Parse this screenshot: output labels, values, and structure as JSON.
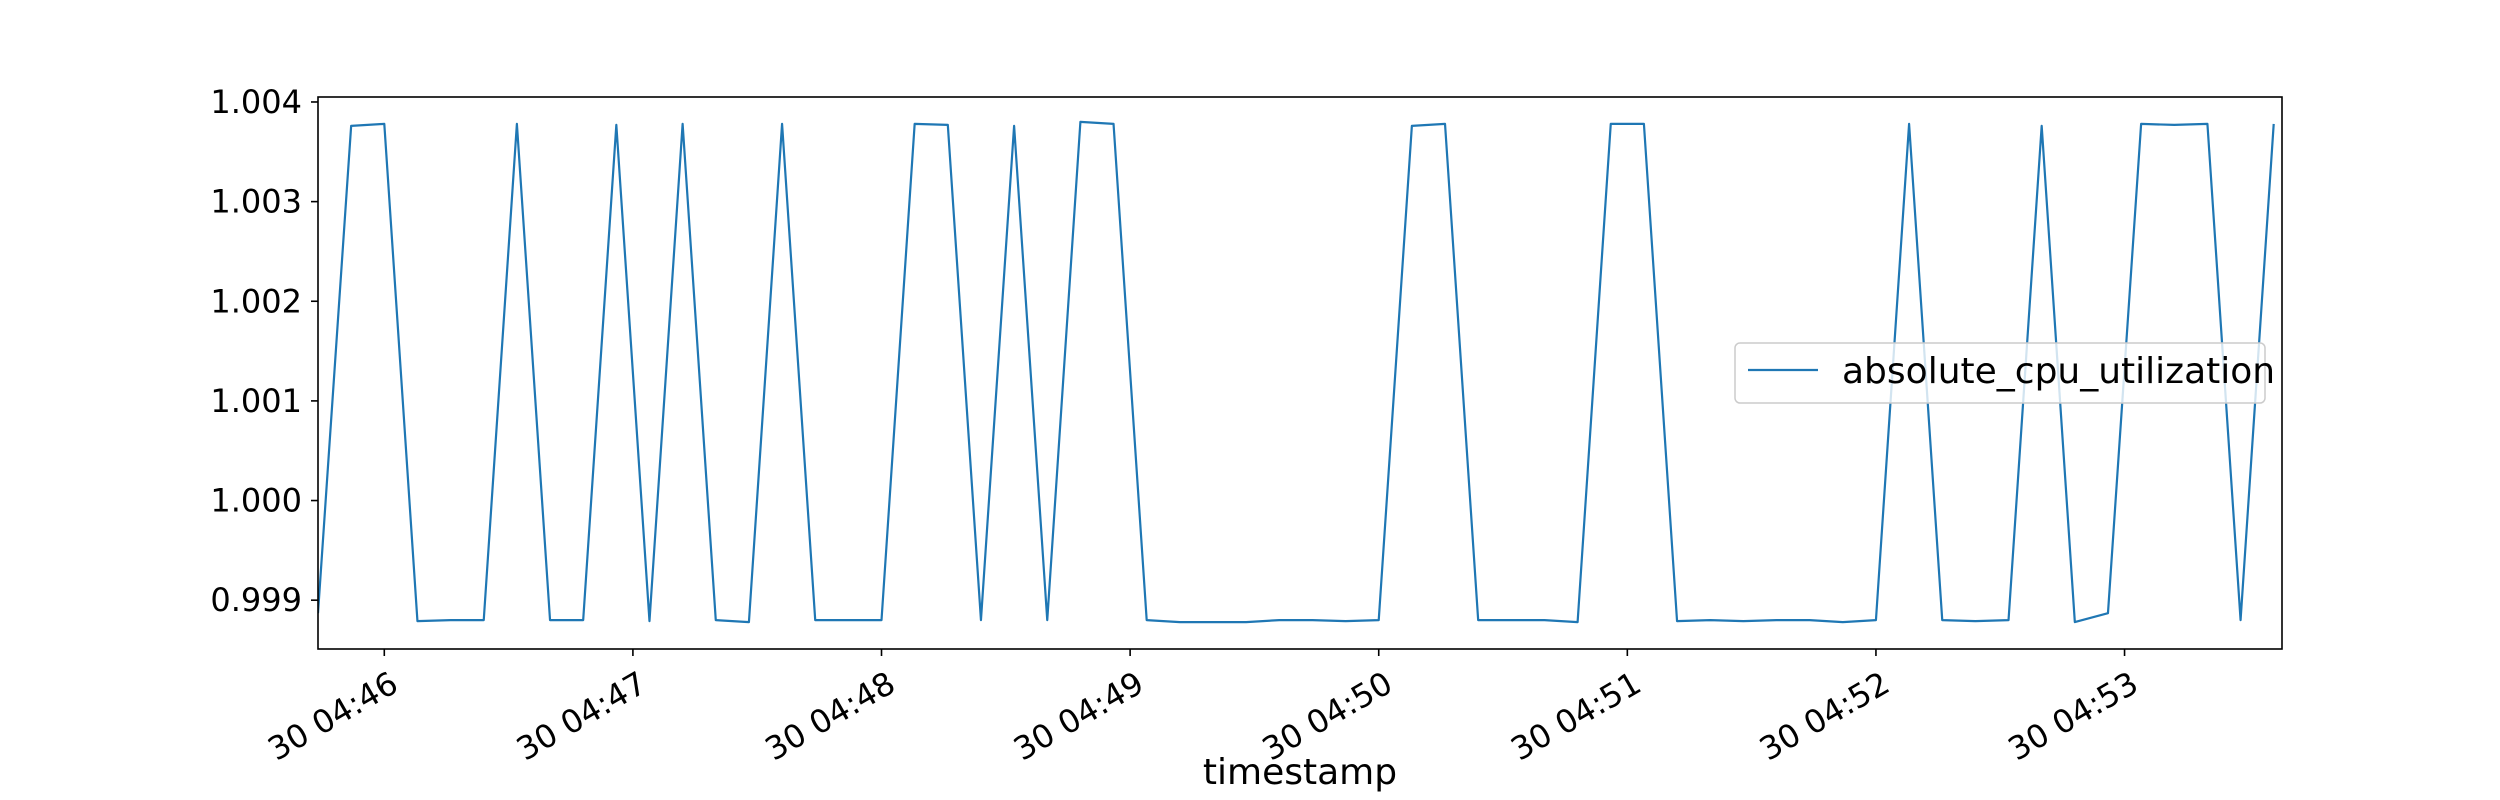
{
  "chart_data": {
    "type": "line",
    "title": "",
    "xlabel": "timestamp",
    "ylabel": "",
    "x_tick_labels": [
      "30 04:46",
      "30 04:47",
      "30 04:48",
      "30 04:49",
      "30 04:50",
      "30 04:51",
      "30 04:52",
      "30 04:53"
    ],
    "x_tick_minutes": [
      46,
      47,
      48,
      49,
      50,
      51,
      52,
      53
    ],
    "xlim": [
      "30 04:45:44",
      "30 04:53:38"
    ],
    "y_tick_values": [
      0.999,
      1.0,
      1.001,
      1.002,
      1.003,
      1.004
    ],
    "y_tick_labels": [
      "0.999",
      "1.000",
      "1.001",
      "1.002",
      "1.003",
      "1.004"
    ],
    "ylim": [
      0.99851,
      1.00405
    ],
    "grid": false,
    "legend": {
      "position": "center-right",
      "entries": [
        "absolute_cpu_utilization"
      ]
    },
    "colors": {
      "series": "#1f77b4",
      "axes": "#000000",
      "legend_border": "#cccccc"
    },
    "series": [
      {
        "name": "absolute_cpu_utilization",
        "x": [
          "04:45:44",
          "04:45:52",
          "04:46:00",
          "04:46:08",
          "04:46:16",
          "04:46:24",
          "04:46:32",
          "04:46:40",
          "04:46:48",
          "04:46:56",
          "04:47:04",
          "04:47:12",
          "04:47:20",
          "04:47:28",
          "04:47:36",
          "04:47:44",
          "04:47:52",
          "04:48:00",
          "04:48:08",
          "04:48:16",
          "04:48:24",
          "04:48:32",
          "04:48:40",
          "04:48:48",
          "04:48:56",
          "04:49:04",
          "04:49:12",
          "04:49:20",
          "04:49:28",
          "04:49:36",
          "04:49:44",
          "04:49:52",
          "04:50:00",
          "04:50:08",
          "04:50:16",
          "04:50:24",
          "04:50:32",
          "04:50:40",
          "04:50:48",
          "04:50:56",
          "04:51:04",
          "04:51:12",
          "04:51:20",
          "04:51:28",
          "04:51:36",
          "04:51:44",
          "04:51:52",
          "04:52:00",
          "04:52:08",
          "04:52:16",
          "04:52:24",
          "04:52:32",
          "04:52:40",
          "04:52:48",
          "04:52:56",
          "04:53:04",
          "04:53:12",
          "04:53:20",
          "04:53:28",
          "04:53:36"
        ],
        "y": [
          0.99887,
          1.00376,
          1.00378,
          0.99879,
          0.9988,
          0.9988,
          1.00378,
          0.9988,
          0.9988,
          1.00377,
          0.99879,
          1.00378,
          0.9988,
          0.99878,
          1.00378,
          0.9988,
          0.9988,
          0.9988,
          1.00378,
          1.00377,
          0.9988,
          1.00376,
          0.9988,
          1.0038,
          1.00378,
          0.9988,
          0.99878,
          0.99878,
          0.99878,
          0.9988,
          0.9988,
          0.99879,
          0.9988,
          1.00376,
          1.00378,
          0.9988,
          0.9988,
          0.9988,
          0.99878,
          1.00378,
          1.00378,
          0.99879,
          0.9988,
          0.99879,
          0.9988,
          0.9988,
          0.99878,
          0.9988,
          1.00378,
          0.9988,
          0.99879,
          0.9988,
          1.00376,
          0.99878,
          0.99887,
          1.00378,
          1.00377,
          1.00378,
          0.9988,
          1.00378
        ]
      }
    ]
  }
}
